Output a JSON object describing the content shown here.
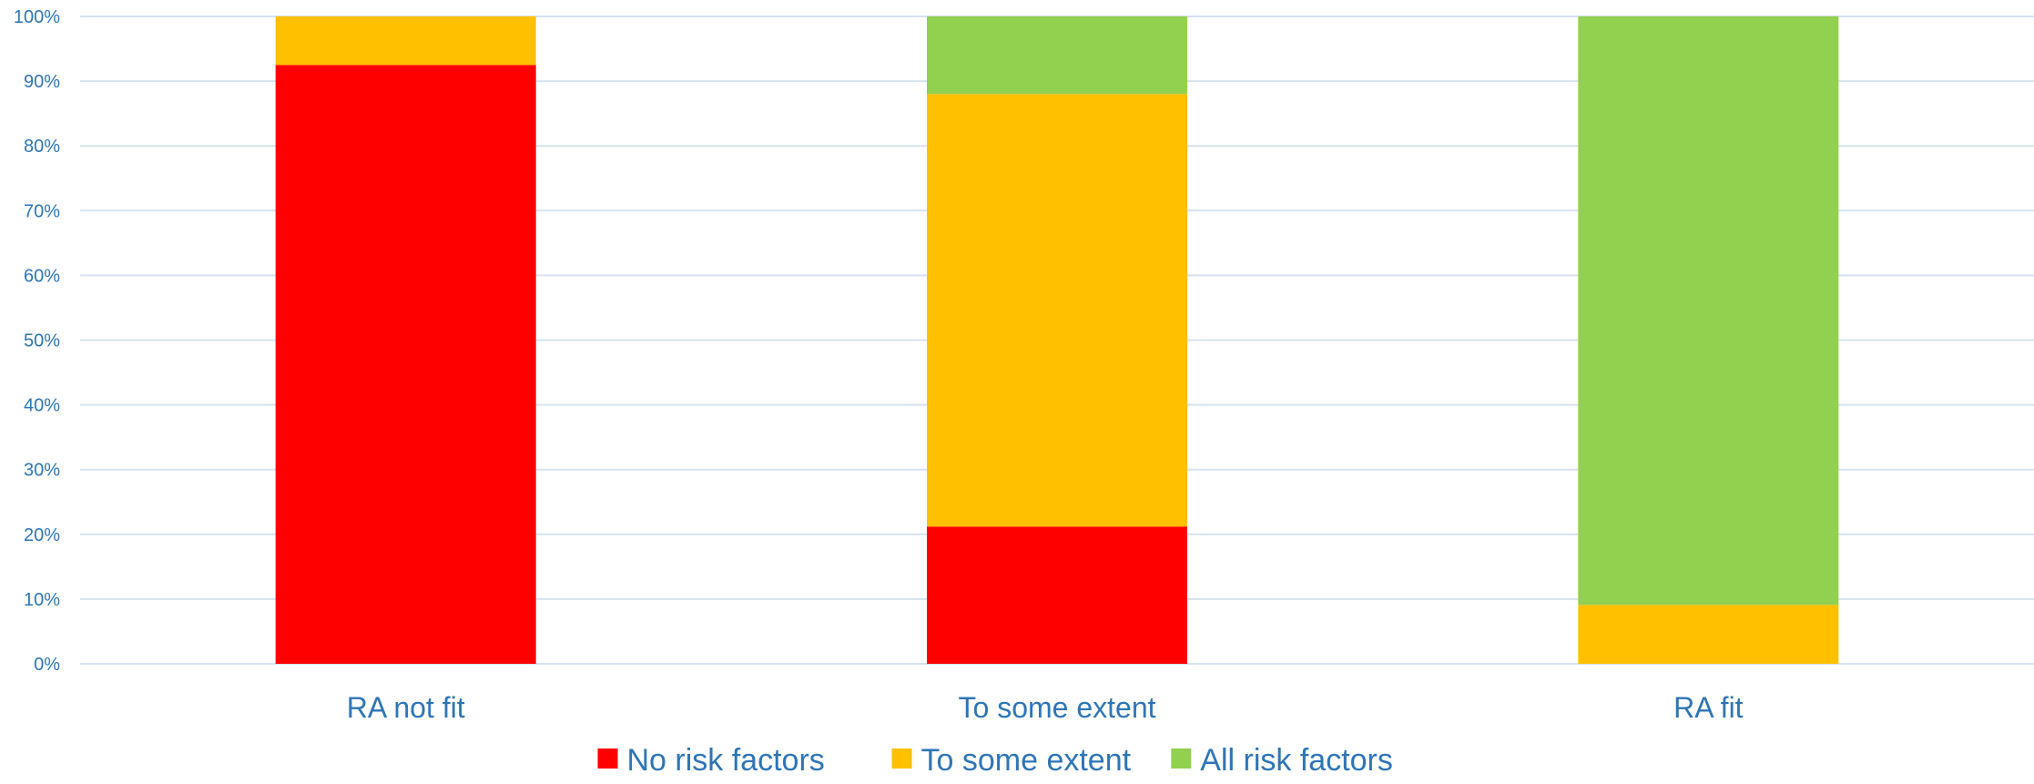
{
  "chart_data": {
    "type": "bar",
    "stacked": true,
    "percent_stacked": true,
    "categories": [
      "RA not fit",
      "To some extent",
      "RA fit"
    ],
    "series": [
      {
        "name": "No risk factors",
        "color": "#ff0000",
        "values": [
          92.5,
          21.2,
          0
        ]
      },
      {
        "name": "To some extent",
        "color": "#ffc000",
        "values": [
          7.5,
          66.8,
          9.1
        ]
      },
      {
        "name": "All risk factors",
        "color": "#92d050",
        "values": [
          0,
          12.0,
          90.9
        ]
      }
    ],
    "ylim": [
      0,
      100
    ],
    "yticks": [
      "0%",
      "10%",
      "20%",
      "30%",
      "40%",
      "50%",
      "60%",
      "70%",
      "80%",
      "90%",
      "100%"
    ],
    "grid": true,
    "legend_position": "bottom",
    "tick_label_color": "#2e75b6",
    "gridline_color": "#d6e2ee"
  }
}
